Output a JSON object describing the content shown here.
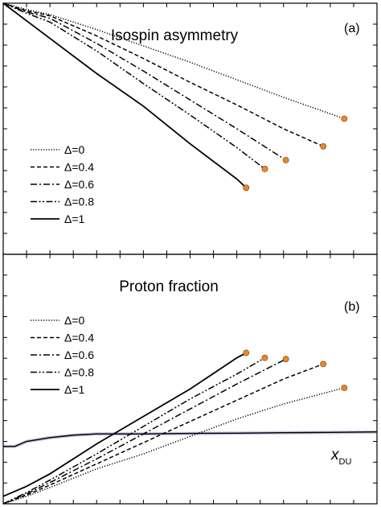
{
  "chart_data": [
    {
      "type": "line",
      "title": "Isospin asymmetry",
      "panel_label": "(a)",
      "xlabel": "",
      "ylabel": "",
      "xlim": [
        0,
        16
      ],
      "ylim": [
        0,
        1
      ],
      "legend_position": "lower-left",
      "marker_color": "#E8882B",
      "series": [
        {
          "name": "Δ=0",
          "dash": "dotted",
          "x": [
            0,
            1,
            2,
            4,
            6,
            8,
            10,
            12,
            14,
            14.6
          ],
          "y": [
            1.0,
            0.975,
            0.955,
            0.895,
            0.83,
            0.765,
            0.695,
            0.625,
            0.56,
            0.54
          ]
        },
        {
          "name": "Δ=0.4",
          "dash": "dashed",
          "x": [
            0,
            1,
            2,
            4,
            6,
            8,
            10,
            12,
            13.7
          ],
          "y": [
            1.0,
            0.97,
            0.95,
            0.87,
            0.78,
            0.685,
            0.595,
            0.5,
            0.43
          ]
        },
        {
          "name": "Δ=0.6",
          "dash": "dashdot",
          "x": [
            0,
            1,
            2,
            4,
            6,
            8,
            10,
            12.1
          ],
          "y": [
            1.0,
            0.965,
            0.94,
            0.84,
            0.73,
            0.615,
            0.5,
            0.375
          ]
        },
        {
          "name": "Δ=0.8",
          "dash": "dashdotdot",
          "x": [
            0,
            1,
            2,
            4,
            6,
            8,
            10,
            11.2
          ],
          "y": [
            1.0,
            0.96,
            0.925,
            0.81,
            0.68,
            0.555,
            0.425,
            0.34
          ]
        },
        {
          "name": "Δ=1",
          "dash": "solid",
          "x": [
            0,
            1,
            2,
            4,
            6,
            8,
            10,
            10.4
          ],
          "y": [
            1.0,
            0.93,
            0.86,
            0.72,
            0.59,
            0.44,
            0.3,
            0.265
          ]
        }
      ]
    },
    {
      "type": "line",
      "title": "Proton fraction",
      "panel_label": "(b)",
      "xlabel": "",
      "ylabel": "",
      "xlim": [
        0,
        16
      ],
      "ylim": [
        0,
        1
      ],
      "legend_position": "left",
      "marker_color": "#E8882B",
      "threshold": {
        "label": "x",
        "label_sub": "DU",
        "x": [
          0,
          0.5,
          1,
          2,
          3,
          4,
          5,
          6,
          8,
          10,
          12,
          14,
          16
        ],
        "y": [
          0.23,
          0.23,
          0.25,
          0.265,
          0.275,
          0.28,
          0.28,
          0.28,
          0.282,
          0.283,
          0.285,
          0.286,
          0.288
        ]
      },
      "series": [
        {
          "name": "Δ=0",
          "dash": "dotted",
          "x": [
            0,
            1,
            2,
            4,
            6,
            8,
            10,
            12,
            14,
            14.6
          ],
          "y": [
            0.0,
            0.03,
            0.065,
            0.14,
            0.2,
            0.27,
            0.34,
            0.4,
            0.45,
            0.465
          ]
        },
        {
          "name": "Δ=0.4",
          "dash": "dashed",
          "x": [
            0,
            1,
            2,
            4,
            6,
            8,
            10,
            12,
            13.7
          ],
          "y": [
            0.0,
            0.035,
            0.075,
            0.16,
            0.245,
            0.33,
            0.415,
            0.5,
            0.56
          ]
        },
        {
          "name": "Δ=0.6",
          "dash": "dashdot",
          "x": [
            0,
            1,
            2,
            4,
            6,
            8,
            10,
            12.1
          ],
          "y": [
            0.0,
            0.04,
            0.085,
            0.18,
            0.28,
            0.38,
            0.48,
            0.58
          ]
        },
        {
          "name": "Δ=0.8",
          "dash": "dashdotdot",
          "x": [
            0,
            1,
            2,
            4,
            6,
            8,
            10,
            11.2
          ],
          "y": [
            0.0,
            0.045,
            0.095,
            0.2,
            0.31,
            0.42,
            0.52,
            0.585
          ]
        },
        {
          "name": "Δ=1",
          "dash": "solid",
          "x": [
            0,
            1,
            2,
            4,
            6,
            8,
            10,
            10.4
          ],
          "y": [
            0.03,
            0.07,
            0.12,
            0.24,
            0.35,
            0.46,
            0.585,
            0.605
          ]
        }
      ]
    }
  ]
}
